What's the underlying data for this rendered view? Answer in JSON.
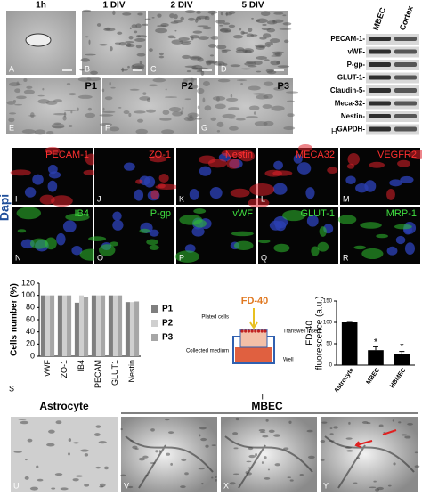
{
  "phase_images": {
    "titles": [
      "1h",
      "1 DIV",
      "2 DIV",
      "5 DIV"
    ],
    "labels": [
      "A",
      "B",
      "C",
      "D"
    ]
  },
  "passage_images": {
    "passages": [
      "P1",
      "P2",
      "P3"
    ],
    "labels": [
      "E",
      "F",
      "G"
    ]
  },
  "western_blot": {
    "columns": [
      "MBEC",
      "Cortex"
    ],
    "rows": [
      "PECAM-1-",
      "vWF-",
      "P-gp-",
      "GLUT-1-",
      "Claudin-5-",
      "Meca-32-",
      "Nestin-",
      "GAPDH-"
    ],
    "label": "H"
  },
  "fluorescence": {
    "stain": "Dapi",
    "rows": [
      [
        {
          "marker": "PECAM-1",
          "label": "I"
        },
        {
          "marker": "ZO-1",
          "label": "J"
        },
        {
          "marker": "Nestin",
          "label": "K"
        },
        {
          "marker": "MECA32",
          "label": "L"
        },
        {
          "marker": "VEGFR2",
          "label": "M"
        }
      ],
      [
        {
          "marker": "IB4",
          "label": "N"
        },
        {
          "marker": "P-gp",
          "label": "O"
        },
        {
          "marker": "vWF",
          "label": "P"
        },
        {
          "marker": "GLUT-1",
          "label": "Q"
        },
        {
          "marker": "MRP-1",
          "label": "R"
        }
      ]
    ]
  },
  "chart_data": [
    {
      "type": "bar",
      "label": "S",
      "ylabel": "Cells number (%)",
      "categories": [
        "vWF",
        "ZO-1",
        "IB4",
        "PECAM",
        "GLUT1",
        "Nestin"
      ],
      "series": [
        {
          "name": "P1",
          "color": "#7f7f7f",
          "values": [
            100,
            100,
            88,
            100,
            100,
            89
          ]
        },
        {
          "name": "P2",
          "color": "#cfcfcf",
          "values": [
            100,
            100,
            100,
            100,
            100,
            89
          ]
        },
        {
          "name": "P3",
          "color": "#a6a6a6",
          "values": [
            100,
            100,
            97,
            100,
            100,
            90
          ]
        }
      ],
      "ylim": [
        0,
        120
      ],
      "yticks": [
        0,
        20,
        40,
        60,
        80,
        100,
        120
      ],
      "legend": "right"
    },
    {
      "type": "bar",
      "ylabel": [
        "FD-40",
        "fluorescence (a.u.)"
      ],
      "categories": [
        "Astrocyte",
        "MBEC",
        "HBMEC"
      ],
      "values": [
        100,
        35,
        25
      ],
      "errors": [
        0,
        8,
        7
      ],
      "annotations": [
        null,
        "*",
        "*"
      ],
      "color": "#000000",
      "ylim": [
        0,
        150
      ],
      "yticks": [
        0,
        50,
        100,
        150
      ]
    }
  ],
  "diagram": {
    "label": "T",
    "title": "FD-40",
    "parts": [
      "Plated cells",
      "Transwell insert",
      "Collected medium",
      "Well"
    ]
  },
  "tube_images": {
    "headers": [
      "Astrocyte",
      "MBEC"
    ],
    "labels": [
      "U",
      "V",
      "X",
      "Y"
    ]
  }
}
